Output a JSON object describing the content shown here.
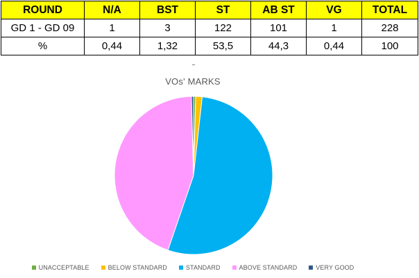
{
  "table": {
    "header_bg": "#ffff00",
    "headers": [
      "ROUND",
      "N/A",
      "BST",
      "ST",
      "AB ST",
      "VG",
      "TOTAL"
    ],
    "rows": [
      [
        "GD 1 - GD 09",
        "1",
        "3",
        "122",
        "101",
        "1",
        "228"
      ],
      [
        "%",
        "0,44",
        "1,32",
        "53,5",
        "44,3",
        "0,44",
        "100"
      ]
    ]
  },
  "chart_data": {
    "type": "pie",
    "title": "VOs' MARKS",
    "legend_position": "bottom",
    "slices": [
      {
        "label": "UNACCEPTABLE",
        "value": 1,
        "color": "#70ad47"
      },
      {
        "label": "BELOW STANDARD",
        "value": 3,
        "color": "#ffc000"
      },
      {
        "label": "STANDARD",
        "value": 122,
        "color": "#00b0f0"
      },
      {
        "label": "ABOVE STANDARD",
        "value": 101,
        "color": "#ff99ff"
      },
      {
        "label": "VERY GOOD",
        "value": 1,
        "color": "#2e5a8a"
      }
    ]
  }
}
